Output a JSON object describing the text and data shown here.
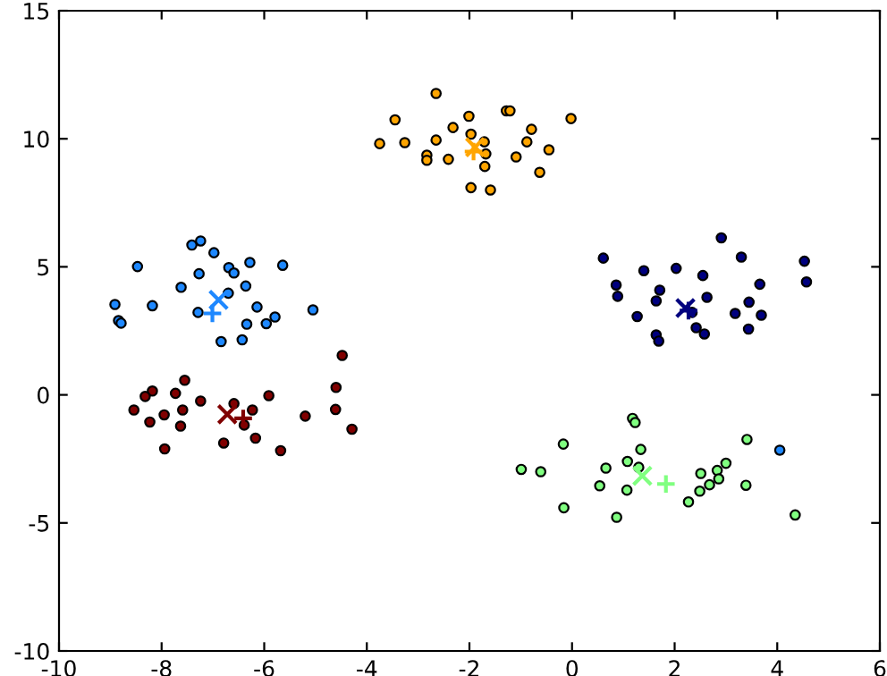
{
  "chart_data": {
    "type": "scatter",
    "xlim": [
      -10,
      6
    ],
    "ylim": [
      -10,
      15
    ],
    "xticks": [
      -10,
      -8,
      -6,
      -4,
      -2,
      0,
      2,
      4,
      6
    ],
    "yticks": [
      -10,
      -5,
      0,
      5,
      10,
      15
    ],
    "grid": false,
    "legend": false,
    "series": [
      {
        "color": "#ffa500",
        "marker": "circle",
        "x": [
          -2.65,
          -3.45,
          -3.75,
          -3.26,
          -2.65,
          -2.32,
          -2.01,
          -1.97,
          -1.71,
          -1.68,
          -1.7,
          -2.41,
          -2.83,
          -2.83,
          -1.97,
          -1.59,
          -1.28,
          -1.21,
          -0.79,
          -0.88,
          -1.09,
          -0.45,
          -0.63,
          -0.02
        ],
        "values": [
          11.77,
          10.74,
          9.81,
          9.85,
          9.95,
          10.44,
          10.88,
          10.18,
          9.88,
          9.41,
          8.92,
          9.2,
          9.36,
          9.16,
          8.09,
          8.0,
          11.09,
          11.09,
          10.37,
          9.88,
          9.29,
          9.57,
          8.69,
          10.79
        ]
      },
      {
        "color": "#1e88ff",
        "marker": "circle",
        "x": [
          -7.41,
          -7.24,
          -6.98,
          -8.47,
          -7.27,
          -6.69,
          -6.59,
          -6.28,
          -5.64,
          -7.62,
          -6.36,
          -6.7,
          -8.91,
          -8.18,
          -7.29,
          -6.14,
          -8.84,
          -8.79,
          -6.34,
          -5.96,
          -5.79,
          -6.84,
          -6.43,
          -5.05,
          4.05
        ],
        "values": [
          5.85,
          6.01,
          5.55,
          5.01,
          4.73,
          4.97,
          4.76,
          5.17,
          5.06,
          4.2,
          4.25,
          3.97,
          3.53,
          3.48,
          3.22,
          3.43,
          2.9,
          2.8,
          2.76,
          2.78,
          3.04,
          2.08,
          2.15,
          3.32,
          -2.16
        ]
      },
      {
        "color": "#00007f",
        "marker": "circle",
        "x": [
          2.91,
          0.61,
          3.3,
          4.53,
          1.4,
          2.03,
          2.55,
          4.57,
          0.86,
          3.66,
          1.71,
          0.89,
          1.64,
          2.63,
          3.45,
          1.27,
          2.34,
          3.18,
          3.69,
          2.42,
          2.58,
          3.44,
          1.64,
          1.69
        ],
        "values": [
          6.13,
          5.34,
          5.38,
          5.22,
          4.85,
          4.94,
          4.66,
          4.41,
          4.29,
          4.32,
          4.09,
          3.85,
          3.67,
          3.81,
          3.62,
          3.06,
          3.22,
          3.18,
          3.11,
          2.62,
          2.38,
          2.57,
          2.34,
          2.1
        ]
      },
      {
        "color": "#800000",
        "marker": "circle",
        "x": [
          -4.48,
          -7.55,
          -8.18,
          -8.32,
          -7.73,
          -4.6,
          -7.24,
          -5.91,
          -6.59,
          -8.54,
          -7.95,
          -7.59,
          -6.23,
          -5.2,
          -4.61,
          -8.23,
          -7.63,
          -6.39,
          -4.29,
          -6.17,
          -6.79,
          -7.94,
          -5.68
        ],
        "values": [
          1.54,
          0.57,
          0.15,
          -0.06,
          0.06,
          0.29,
          -0.24,
          -0.03,
          -0.34,
          -0.59,
          -0.78,
          -0.59,
          -0.59,
          -0.83,
          -0.57,
          -1.06,
          -1.22,
          -1.18,
          -1.34,
          -1.69,
          -1.88,
          -2.11,
          -2.18
        ]
      },
      {
        "color": "#80ff80",
        "marker": "circle",
        "x": [
          1.18,
          1.23,
          -0.17,
          3.41,
          1.34,
          1.08,
          1.3,
          -0.61,
          0.66,
          3.0,
          2.83,
          2.51,
          2.86,
          0.54,
          1.07,
          2.68,
          3.39,
          2.49,
          2.27,
          -0.16,
          0.87,
          4.35,
          -0.99
        ],
        "values": [
          -0.92,
          -1.08,
          -1.92,
          -1.74,
          -2.13,
          -2.6,
          -2.83,
          -3.0,
          -2.86,
          -2.67,
          -2.95,
          -3.07,
          -3.28,
          -3.55,
          -3.72,
          -3.51,
          -3.53,
          -3.76,
          -4.18,
          -4.41,
          -4.78,
          -4.69,
          -2.91
        ]
      },
      {
        "color": "#ffa500",
        "marker": "cross",
        "x": [
          -1.89
        ],
        "values": [
          9.67
        ]
      },
      {
        "color": "#ffa500",
        "marker": "plus",
        "x": [
          -1.92
        ],
        "values": [
          9.5
        ]
      },
      {
        "color": "#1e88ff",
        "marker": "cross",
        "x": [
          -6.89
        ],
        "values": [
          3.71
        ]
      },
      {
        "color": "#1e88ff",
        "marker": "plus",
        "x": [
          -7.01
        ],
        "values": [
          3.18
        ]
      },
      {
        "color": "#00007f",
        "marker": "cross",
        "x": [
          2.21
        ],
        "values": [
          3.39
        ]
      },
      {
        "color": "#00007f",
        "marker": "plus",
        "x": [
          2.27
        ],
        "values": [
          3.29
        ]
      },
      {
        "color": "#800000",
        "marker": "cross",
        "x": [
          -6.72
        ],
        "values": [
          -0.76
        ]
      },
      {
        "color": "#800000",
        "marker": "plus",
        "x": [
          -6.41
        ],
        "values": [
          -0.92
        ]
      },
      {
        "color": "#80ff80",
        "marker": "cross",
        "x": [
          1.37
        ],
        "values": [
          -3.16
        ]
      },
      {
        "color": "#80ff80",
        "marker": "plus",
        "x": [
          1.83
        ],
        "values": [
          -3.48
        ]
      }
    ]
  }
}
